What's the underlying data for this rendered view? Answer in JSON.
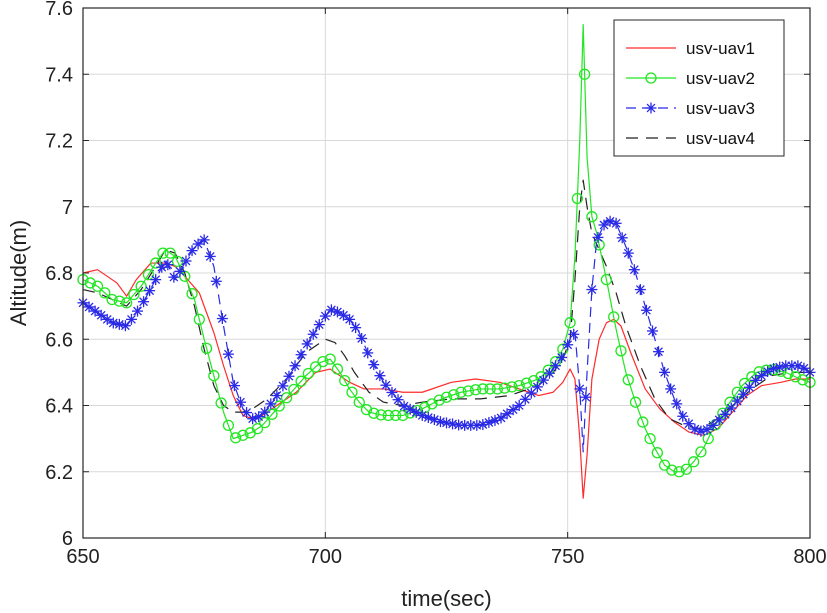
{
  "chart_data": {
    "type": "line",
    "title": "",
    "xlabel": "time(sec)",
    "ylabel": "Altitude(m)",
    "xlim": [
      650,
      800
    ],
    "ylim": [
      6,
      7.6
    ],
    "xticks": [
      650,
      700,
      750,
      800
    ],
    "xtick_labels": [
      "650",
      "700",
      "750",
      "800"
    ],
    "yticks": [
      6,
      6.2,
      6.4,
      6.6,
      6.8,
      7,
      7.2,
      7.4,
      7.6
    ],
    "ytick_labels": [
      "6",
      "6.2",
      "6.4",
      "6.6",
      "6.8",
      "7",
      "7.2",
      "7.4",
      "7.6"
    ],
    "grid": true,
    "legend_position": "top-right",
    "series": [
      {
        "name": "usv-uav1",
        "color": "#ff2a2a",
        "marker": "none",
        "dash": "solid",
        "x": [
          650,
          653,
          657,
          659,
          661,
          664,
          667,
          669,
          671,
          674,
          677,
          679,
          681,
          683,
          685,
          687,
          690,
          694,
          698,
          701,
          703,
          705,
          708,
          712,
          716,
          720,
          726,
          731,
          736,
          740,
          744,
          747,
          749,
          750.5,
          751.5,
          752.5,
          753.2,
          754,
          755,
          756.5,
          758,
          759.5,
          761,
          763,
          766,
          769,
          772,
          775,
          778,
          781,
          784,
          787,
          790,
          794,
          797,
          800
        ],
        "y": [
          6.8,
          6.81,
          6.77,
          6.73,
          6.78,
          6.83,
          6.83,
          6.82,
          6.79,
          6.74,
          6.62,
          6.52,
          6.43,
          6.37,
          6.36,
          6.37,
          6.4,
          6.44,
          6.5,
          6.51,
          6.49,
          6.47,
          6.45,
          6.45,
          6.44,
          6.44,
          6.47,
          6.48,
          6.47,
          6.45,
          6.43,
          6.44,
          6.47,
          6.51,
          6.48,
          6.3,
          6.12,
          6.25,
          6.48,
          6.6,
          6.65,
          6.66,
          6.64,
          6.56,
          6.45,
          6.39,
          6.35,
          6.32,
          6.31,
          6.33,
          6.38,
          6.43,
          6.46,
          6.47,
          6.48,
          6.48
        ]
      },
      {
        "name": "usv-uav2",
        "color": "#22e622",
        "marker": "circle",
        "dash": "solid",
        "x": [
          650,
          653,
          656,
          659,
          662,
          665,
          667,
          669,
          671,
          673,
          675,
          677,
          679,
          681,
          683,
          685,
          687,
          690,
          693,
          696,
          699,
          701,
          703,
          705,
          707,
          709,
          712,
          716,
          720,
          724,
          728,
          732,
          736,
          740,
          744,
          747,
          749,
          750.5,
          751.5,
          752.5,
          753.2,
          754,
          755,
          756,
          758,
          760,
          762,
          764,
          766,
          768,
          770,
          772,
          774,
          776,
          778,
          780,
          783,
          786,
          789,
          792,
          795,
          798,
          800
        ],
        "y": [
          6.78,
          6.76,
          6.72,
          6.71,
          6.76,
          6.83,
          6.87,
          6.85,
          6.79,
          6.72,
          6.6,
          6.49,
          6.38,
          6.3,
          6.31,
          6.32,
          6.34,
          6.39,
          6.44,
          6.49,
          6.53,
          6.54,
          6.5,
          6.45,
          6.41,
          6.38,
          6.37,
          6.37,
          6.39,
          6.42,
          6.44,
          6.45,
          6.45,
          6.46,
          6.48,
          6.52,
          6.57,
          6.65,
          6.85,
          7.2,
          7.55,
          7.15,
          6.97,
          6.92,
          6.78,
          6.63,
          6.5,
          6.41,
          6.33,
          6.27,
          6.22,
          6.2,
          6.2,
          6.23,
          6.27,
          6.33,
          6.4,
          6.46,
          6.5,
          6.51,
          6.5,
          6.48,
          6.47
        ]
      },
      {
        "name": "usv-uav3",
        "color": "#2a2ae6",
        "marker": "star",
        "dash": "dashed",
        "x": [
          650,
          653,
          656,
          659,
          662,
          665,
          667,
          669,
          671,
          673,
          675,
          677,
          679,
          681,
          683,
          685,
          687,
          690,
          693,
          696,
          699,
          701,
          703,
          705,
          707,
          709,
          712,
          716,
          720,
          724,
          728,
          732,
          736,
          740,
          744,
          747,
          749,
          750.5,
          751.5,
          752.5,
          753.2,
          754,
          755,
          756,
          758,
          760,
          762,
          764,
          766,
          768,
          770,
          772,
          774,
          776,
          778,
          780,
          783,
          786,
          789,
          792,
          795,
          798,
          800
        ],
        "y": [
          6.71,
          6.68,
          6.65,
          6.64,
          6.7,
          6.78,
          6.84,
          6.78,
          6.83,
          6.88,
          6.9,
          6.82,
          6.64,
          6.47,
          6.39,
          6.36,
          6.37,
          6.43,
          6.5,
          6.58,
          6.65,
          6.69,
          6.68,
          6.66,
          6.62,
          6.55,
          6.47,
          6.4,
          6.37,
          6.35,
          6.34,
          6.34,
          6.36,
          6.4,
          6.46,
          6.51,
          6.55,
          6.6,
          6.62,
          6.45,
          6.26,
          6.5,
          6.75,
          6.9,
          6.96,
          6.95,
          6.88,
          6.8,
          6.7,
          6.6,
          6.5,
          6.42,
          6.36,
          6.33,
          6.32,
          6.34,
          6.38,
          6.43,
          6.48,
          6.51,
          6.52,
          6.52,
          6.5
        ]
      },
      {
        "name": "usv-uav4",
        "color": "#222222",
        "marker": "none",
        "dash": "longdash",
        "x": [
          650,
          653,
          656,
          659,
          662,
          665,
          667,
          669,
          671,
          673,
          675,
          677,
          679,
          681,
          683,
          685,
          688,
          692,
          696,
          700,
          702,
          704,
          706,
          709,
          712,
          716,
          720,
          726,
          732,
          738,
          744,
          747,
          749,
          750.5,
          751.5,
          752.5,
          753.2,
          754,
          755,
          756.5,
          758,
          760,
          762,
          765,
          768,
          771,
          774,
          777,
          780,
          784,
          788,
          792,
          796,
          800
        ],
        "y": [
          6.75,
          6.74,
          6.72,
          6.7,
          6.75,
          6.82,
          6.87,
          6.86,
          6.8,
          6.7,
          6.57,
          6.46,
          6.4,
          6.38,
          6.38,
          6.39,
          6.42,
          6.48,
          6.56,
          6.6,
          6.59,
          6.55,
          6.5,
          6.44,
          6.41,
          6.4,
          6.41,
          6.42,
          6.42,
          6.43,
          6.46,
          6.5,
          6.54,
          6.6,
          6.78,
          7.0,
          7.08,
          7.0,
          6.92,
          6.87,
          6.82,
          6.74,
          6.64,
          6.52,
          6.42,
          6.36,
          6.34,
          6.33,
          6.35,
          6.4,
          6.45,
          6.49,
          6.5,
          6.5
        ]
      }
    ]
  }
}
